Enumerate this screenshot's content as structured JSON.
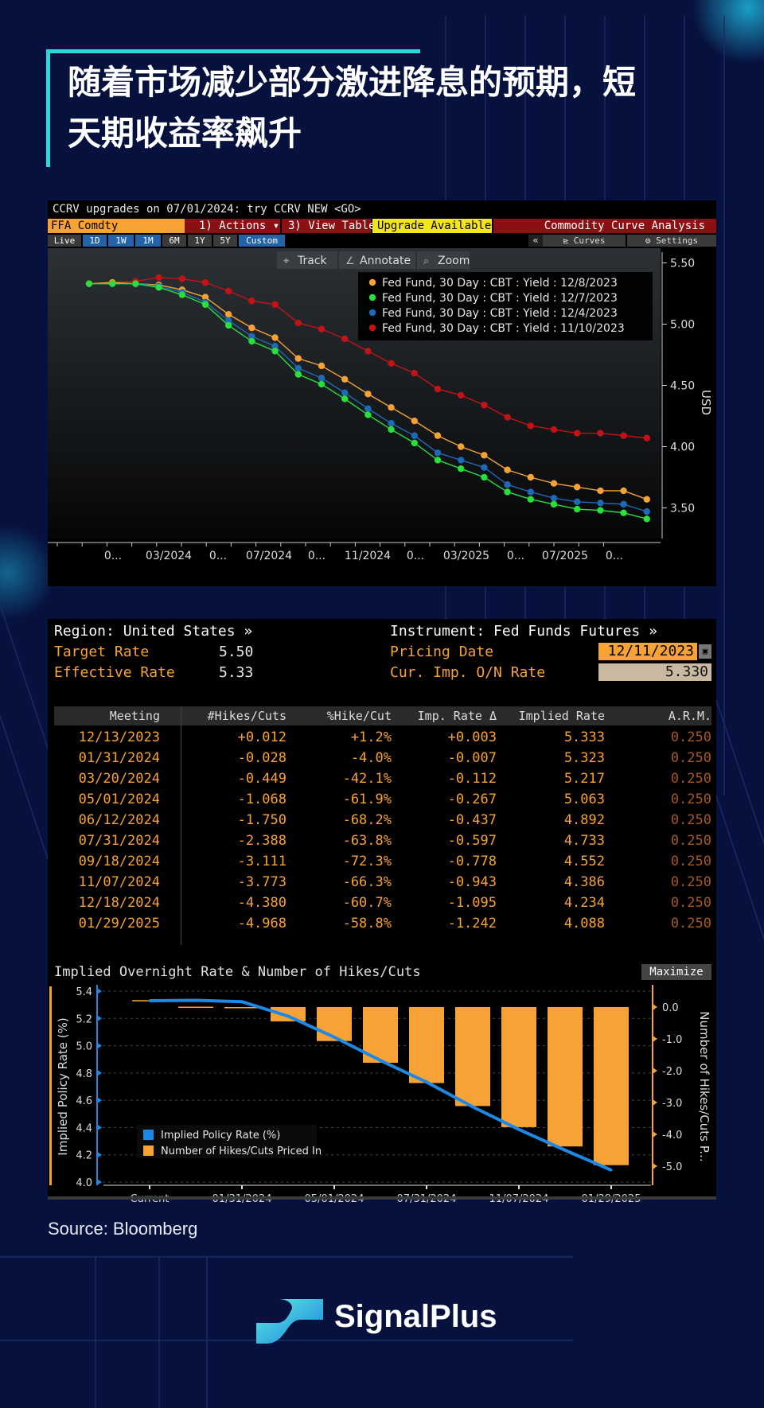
{
  "title": "随着市场减少部分激进降息的预期，短天期收益率飙升",
  "title_lines": [
    "随着市场减少部分激进降息的预期，短",
    "天期收益率飙升"
  ],
  "source": "Source: Bloomberg",
  "brand": "SignalPlus",
  "colors": {
    "accent": "#2fd5d9",
    "background": "#07113d",
    "orange": "#f7a234",
    "green": "#29e03a",
    "blue": "#1e6ab7",
    "red": "#c21416"
  },
  "terminal": {
    "command_line": "CCRV upgrades on 07/01/2024: try CCRV NEW <GO>",
    "security": "FFA Comdty",
    "actions_menu": "1) Actions ▾",
    "view_table_menu": "3) View Table",
    "upgrade_badge": "Upgrade Available",
    "function_title": "Commodity Curve Analysis",
    "period_buttons": [
      "Live",
      "1D",
      "1W",
      "1M",
      "6M",
      "1Y",
      "5Y",
      "Custom"
    ],
    "collapse_button": "«",
    "curves_button": "Curves",
    "settings_button": "Settings",
    "tools": [
      "Track",
      "Annotate",
      "Zoom"
    ]
  },
  "curve_chart": {
    "chart_data": {
      "type": "line",
      "ylabel": "USD",
      "ylim": [
        3.25,
        5.62
      ],
      "y_ticks": [
        3.5,
        4.0,
        4.5,
        5.0,
        5.5
      ],
      "y_tick_labels": [
        "3.50",
        "4.00",
        "4.50",
        "5.00",
        "5.50"
      ],
      "x_tick_labels": [
        "0...",
        "03/2024",
        "0...",
        "07/2024",
        "0...",
        "11/2024",
        "0...",
        "03/2025",
        "0...",
        "07/2025",
        "0..."
      ],
      "point_count": 25,
      "series": [
        {
          "name": "Fed Fund, 30 Day : CBT : Yield : 12/8/2023",
          "color": "#f7a234",
          "values": [
            5.33,
            5.34,
            5.33,
            5.32,
            5.28,
            5.22,
            5.08,
            4.97,
            4.89,
            4.72,
            4.66,
            4.55,
            4.43,
            4.32,
            4.21,
            4.09,
            4.0,
            3.93,
            3.81,
            3.75,
            3.7,
            3.67,
            3.64,
            3.64,
            3.57
          ]
        },
        {
          "name": "Fed Fund, 30 Day : CBT : Yield : 12/7/2023",
          "color": "#29e03a",
          "values": [
            5.33,
            5.33,
            5.33,
            5.3,
            5.24,
            5.16,
            4.99,
            4.86,
            4.78,
            4.59,
            4.51,
            4.39,
            4.26,
            4.14,
            4.03,
            3.89,
            3.82,
            3.75,
            3.63,
            3.57,
            3.53,
            3.49,
            3.48,
            3.46,
            3.41
          ]
        },
        {
          "name": "Fed Fund, 30 Day : CBT : Yield : 12/4/2023",
          "color": "#1e6ab7",
          "values": [
            5.33,
            5.33,
            5.33,
            5.31,
            5.26,
            5.18,
            5.03,
            4.9,
            4.82,
            4.64,
            4.56,
            4.44,
            4.31,
            4.19,
            4.09,
            3.95,
            3.89,
            3.83,
            3.69,
            3.63,
            3.58,
            3.55,
            3.54,
            3.53,
            3.47
          ]
        },
        {
          "name": "Fed Fund, 30 Day : CBT : Yield : 11/10/2023",
          "color": "#c21416",
          "values": [
            5.33,
            5.34,
            5.35,
            5.38,
            5.37,
            5.34,
            5.27,
            5.19,
            5.16,
            5.01,
            4.96,
            4.88,
            4.78,
            4.68,
            4.6,
            4.47,
            4.42,
            4.34,
            4.24,
            4.17,
            4.14,
            4.11,
            4.11,
            4.09,
            4.07
          ]
        }
      ]
    }
  },
  "probability": {
    "region_label": "Region: United States »",
    "instrument_label": "Instrument: Fed Funds Futures »",
    "target_rate_label": "Target Rate",
    "target_rate_value": "5.50",
    "effective_rate_label": "Effective Rate",
    "effective_rate_value": "5.33",
    "pricing_date_label": "Pricing Date",
    "pricing_date_value": "12/11/2023",
    "on_rate_label": "Cur. Imp. O/N Rate",
    "on_rate_value": "5.330",
    "columns": [
      "Meeting",
      "#Hikes/Cuts",
      "%Hike/Cut",
      "Imp. Rate Δ",
      "Implied Rate",
      "A.R.M."
    ],
    "rows": [
      [
        "12/13/2023",
        "+0.012",
        "+1.2%",
        "+0.003",
        "5.333",
        "0.250"
      ],
      [
        "01/31/2024",
        "-0.028",
        "-4.0%",
        "-0.007",
        "5.323",
        "0.250"
      ],
      [
        "03/20/2024",
        "-0.449",
        "-42.1%",
        "-0.112",
        "5.217",
        "0.250"
      ],
      [
        "05/01/2024",
        "-1.068",
        "-61.9%",
        "-0.267",
        "5.063",
        "0.250"
      ],
      [
        "06/12/2024",
        "-1.750",
        "-68.2%",
        "-0.437",
        "4.892",
        "0.250"
      ],
      [
        "07/31/2024",
        "-2.388",
        "-63.8%",
        "-0.597",
        "4.733",
        "0.250"
      ],
      [
        "09/18/2024",
        "-3.111",
        "-72.3%",
        "-0.778",
        "4.552",
        "0.250"
      ],
      [
        "11/07/2024",
        "-3.773",
        "-66.3%",
        "-0.943",
        "4.386",
        "0.250"
      ],
      [
        "12/18/2024",
        "-4.380",
        "-60.7%",
        "-1.095",
        "4.234",
        "0.250"
      ],
      [
        "01/29/2025",
        "-4.968",
        "-58.8%",
        "-1.242",
        "4.088",
        "0.250"
      ]
    ]
  },
  "combo_chart": {
    "maximize_button": "Maximize",
    "chart_data": {
      "type": "bar",
      "title": "Implied Overnight Rate & Number of Hikes/Cuts",
      "ylabel": "Implied Policy Rate (%)",
      "y2label": "Number of Hikes/Cuts P...",
      "ylim": [
        4.0,
        5.4
      ],
      "y_ticks": [
        "5.4",
        "5.2",
        "5.0",
        "4.8",
        "4.6",
        "4.4",
        "4.2",
        "4.0"
      ],
      "y2lim": [
        -5.5,
        0.5
      ],
      "y2_ticks": [
        "0.0",
        "-1.0",
        "-2.0",
        "-3.0",
        "-4.0",
        "-5.0"
      ],
      "x_tick_labels": [
        "Current",
        "01/31/2024",
        "05/01/2024",
        "07/31/2024",
        "11/07/2024",
        "01/29/2025"
      ],
      "categories": [
        "Current",
        "12/13/2023",
        "01/31/2024",
        "03/20/2024",
        "05/01/2024",
        "06/12/2024",
        "07/31/2024",
        "09/18/2024",
        "11/07/2024",
        "12/18/2024",
        "01/29/2025"
      ],
      "series": [
        {
          "name": "Implied Policy Rate (%)",
          "type": "line",
          "color": "#1e88e5",
          "values": [
            5.33,
            5.333,
            5.323,
            5.217,
            5.063,
            4.892,
            4.733,
            4.552,
            4.386,
            4.234,
            4.088
          ]
        },
        {
          "name": "Number of Hikes/Cuts Priced In",
          "type": "bar",
          "color": "#f7a234",
          "values": [
            0,
            0.012,
            -0.028,
            -0.449,
            -1.068,
            -1.75,
            -2.388,
            -3.111,
            -3.773,
            -4.38,
            -4.968
          ]
        }
      ],
      "legend_position": "bottom-left"
    }
  }
}
